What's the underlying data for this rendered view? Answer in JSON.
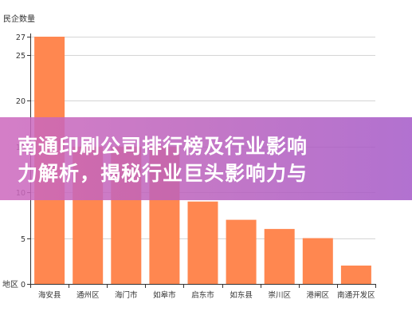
{
  "chart_data": {
    "type": "bar",
    "title": "",
    "xlabel": "",
    "ylabel": "民企数量",
    "x_axis_name": "地区",
    "categories": [
      "海安县",
      "通州区",
      "海门市",
      "如皋市",
      "启东市",
      "如东县",
      "崇川区",
      "港闸区",
      "南通开发区"
    ],
    "series": [
      {
        "values": [
          27,
          15,
          15,
          15,
          9,
          7,
          6,
          5,
          2
        ]
      }
    ],
    "ylim": [
      0,
      27
    ],
    "yticks": [
      0,
      5,
      10,
      15,
      20,
      25,
      27
    ],
    "grid": true,
    "legend": "none"
  },
  "overlay": {
    "title_line1": "南通印刷公司排行榜及行业影响",
    "title_line2": "力解析，揭秘行业巨头影响力与"
  },
  "colors": {
    "bar": "#ff8750",
    "grid": "#d5d5d5",
    "axis": "#333333",
    "banner": "#bc62bc",
    "title_text": "#ffffff"
  }
}
